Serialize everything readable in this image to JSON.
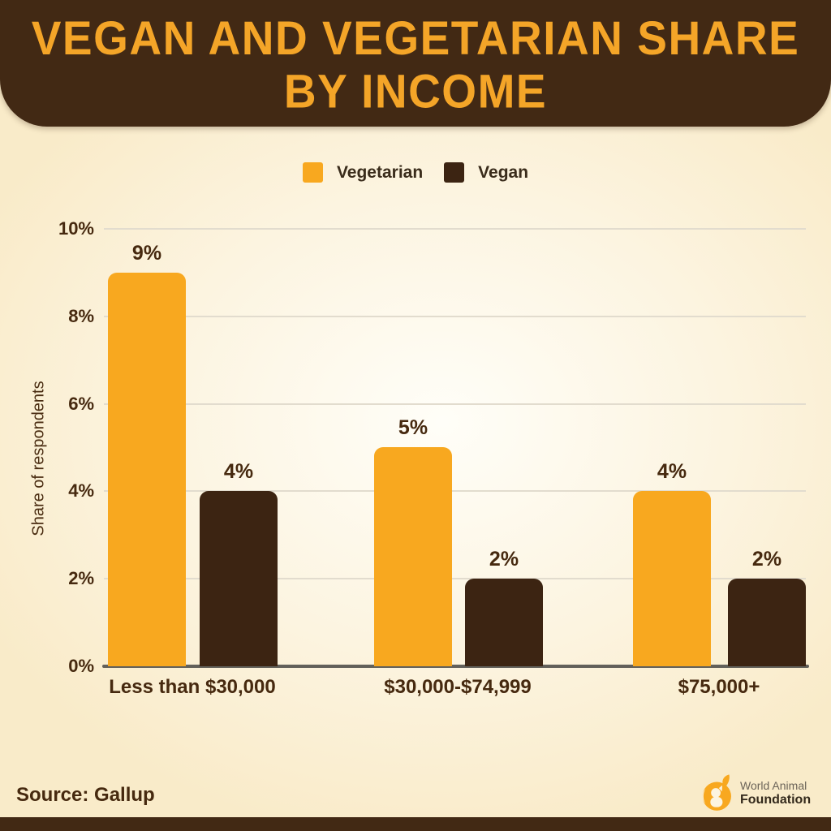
{
  "page": {
    "title_lines": [
      "VEGAN AND VEGETARIAN SHARE",
      "BY INCOME"
    ],
    "source": "Source: Gallup",
    "logo": {
      "line1": "World Animal",
      "line2": "Foundation"
    }
  },
  "colors": {
    "header_bg": "#422914",
    "title": "#F4A528",
    "vegetarian": "#F8A81F",
    "vegan": "#3C2412",
    "text_dark": "#46290F",
    "background": "#FAEDCD",
    "gridline": "#E2DCCE",
    "baseline": "#62605A"
  },
  "chart_data": {
    "type": "bar",
    "title": "Vegan and Vegetarian Share by Income",
    "categories": [
      "Less than $30,000",
      "$30,000-$74,999",
      "$75,000+"
    ],
    "series": [
      {
        "name": "Vegetarian",
        "values": [
          9,
          5,
          4
        ],
        "color": "#F8A81F"
      },
      {
        "name": "Vegan",
        "values": [
          4,
          2,
          2
        ],
        "color": "#3C2412"
      }
    ],
    "ylabel": "Share of respondents",
    "yticks": [
      "0%",
      "2%",
      "4%",
      "6%",
      "8%",
      "10%"
    ],
    "ylim": [
      0,
      10
    ],
    "grid": true,
    "legend_position": "top",
    "value_label_format": "{v}%"
  }
}
